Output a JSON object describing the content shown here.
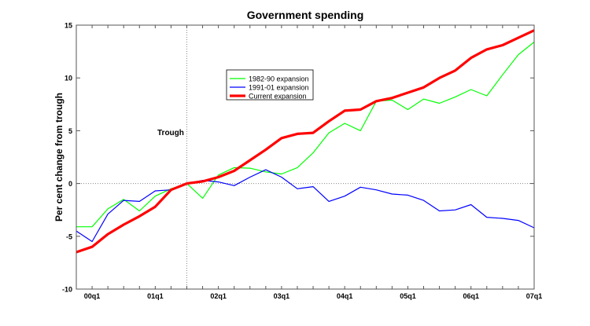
{
  "chart_data": {
    "type": "line",
    "title": "Government spending",
    "xlabel": "",
    "ylabel": "Per cent change from trough",
    "ylim": [
      -10,
      15
    ],
    "yticks": [
      -10,
      -5,
      0,
      5,
      10,
      15
    ],
    "x": [
      "99q4",
      "00q1",
      "00q2",
      "00q3",
      "00q4",
      "01q1",
      "01q2",
      "01q3",
      "01q4",
      "02q1",
      "02q2",
      "02q3",
      "02q4",
      "03q1",
      "03q2",
      "03q3",
      "03q4",
      "04q1",
      "04q2",
      "04q3",
      "04q4",
      "05q1",
      "05q2",
      "05q3",
      "05q4",
      "06q1",
      "06q2",
      "06q3",
      "06q4",
      "07q1"
    ],
    "xtick_labels": [
      "00q1",
      "01q1",
      "02q1",
      "03q1",
      "04q1",
      "05q1",
      "06q1",
      "07q1"
    ],
    "grid": false,
    "reference_lines": {
      "horizontal_at": 0,
      "vertical_at": "01q3"
    },
    "annotation": "Trough",
    "legend_position": "upper-center",
    "series": [
      {
        "name": "1982-90 expansion",
        "color": "#00ff00",
        "values": [
          -4.1,
          -4.1,
          -2.4,
          -1.5,
          -2.6,
          -1.2,
          -0.5,
          0,
          -1.4,
          0.8,
          1.5,
          1.45,
          1.1,
          0.9,
          1.5,
          2.9,
          4.8,
          5.7,
          5.0,
          7.8,
          7.9,
          7.0,
          8.0,
          7.6,
          8.2,
          8.9,
          8.3,
          10.3,
          12.2,
          13.4
        ]
      },
      {
        "name": "1991-01 expansion",
        "color": "#0000ff",
        "values": [
          -4.5,
          -5.5,
          -2.9,
          -1.6,
          -1.7,
          -0.7,
          -0.6,
          0,
          0.3,
          0.15,
          -0.2,
          0.6,
          1.3,
          0.6,
          -0.5,
          -0.3,
          -1.7,
          -1.2,
          -0.35,
          -0.6,
          -1.0,
          -1.1,
          -1.6,
          -2.6,
          -2.5,
          -2.0,
          -3.2,
          -3.3,
          -3.5,
          -4.2
        ]
      },
      {
        "name": "Current expansion",
        "color": "#ff0000",
        "values": [
          -6.5,
          -6.0,
          -4.8,
          -3.9,
          -3.1,
          -2.2,
          -0.6,
          0,
          0.2,
          0.6,
          1.2,
          2.2,
          3.2,
          4.3,
          4.7,
          4.8,
          5.9,
          6.9,
          7.0,
          7.8,
          8.1,
          8.6,
          9.1,
          10.0,
          10.7,
          11.9,
          12.7,
          13.1,
          13.8,
          14.5
        ]
      }
    ]
  }
}
